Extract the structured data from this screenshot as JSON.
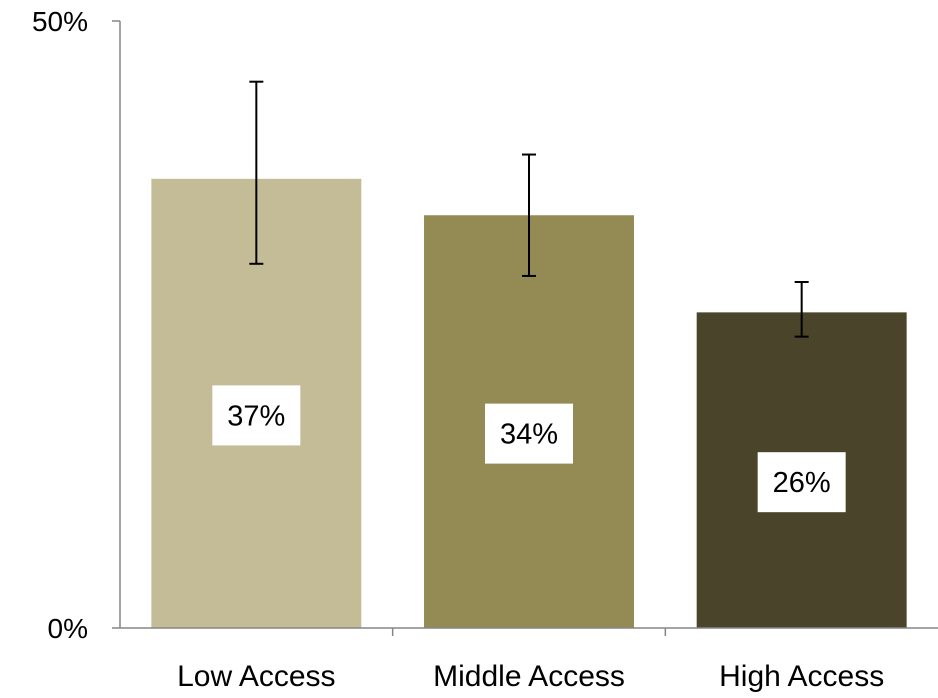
{
  "chart_data": {
    "type": "bar",
    "title": "",
    "xlabel": "",
    "ylabel": "",
    "categories": [
      "Low Access",
      "Middle  Access",
      "High Access"
    ],
    "series": [
      {
        "values": [
          37,
          34,
          26
        ],
        "data_labels": [
          "37%",
          "34%",
          "26%"
        ],
        "error_bars": [
          {
            "low": 30,
            "high": 45
          },
          {
            "low": 29,
            "high": 39
          },
          {
            "low": 24,
            "high": 28.5
          }
        ],
        "colors": [
          "#c4bc97",
          "#948a54",
          "#4a452a"
        ]
      }
    ],
    "ylim": [
      0,
      50
    ],
    "y_ticks": [
      {
        "value": 0,
        "label": "0%"
      },
      {
        "value": 50,
        "label": "50%"
      }
    ],
    "grid": false,
    "legend": "none"
  }
}
